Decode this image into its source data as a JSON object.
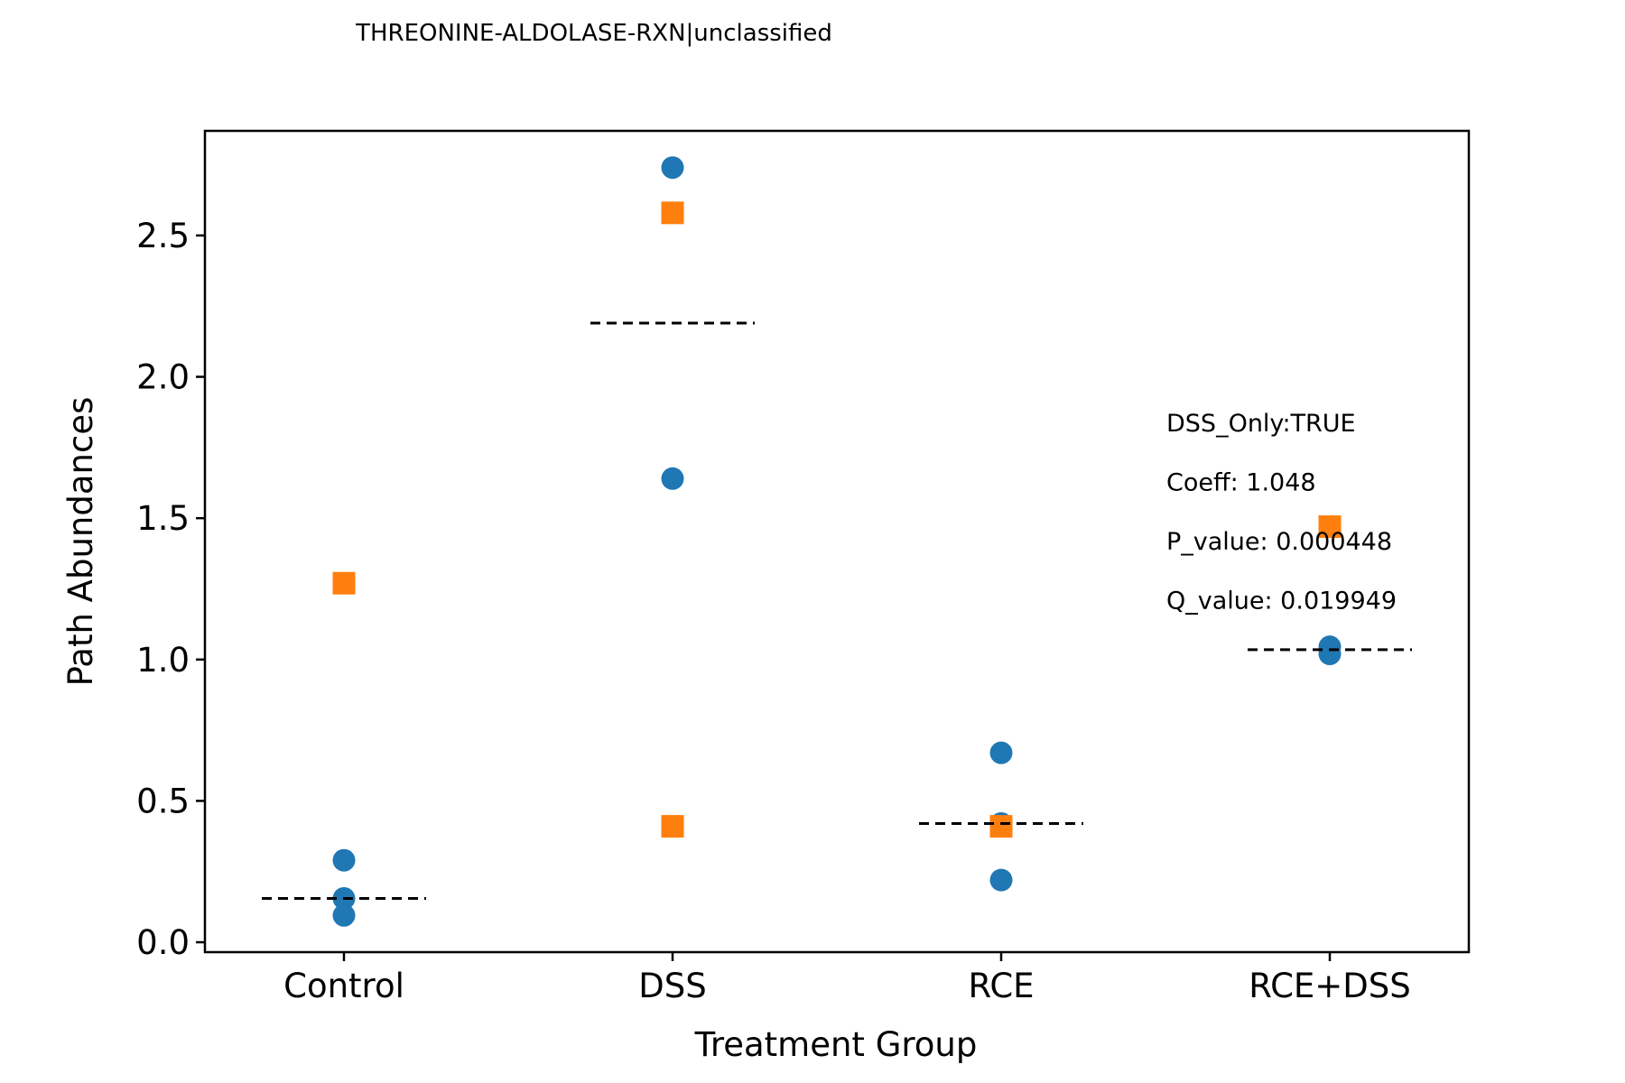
{
  "chart_data": {
    "type": "scatter",
    "title": "THREONINE-ALDOLASE-RXN|unclassified",
    "xlabel": "Treatment Group",
    "ylabel": "Path Abundances",
    "categories": [
      "Control",
      "DSS",
      "RCE",
      "RCE+DSS"
    ],
    "ylim": [
      -0.035,
      2.87
    ],
    "yticks": [
      0.0,
      0.5,
      1.0,
      1.5,
      2.0,
      2.5
    ],
    "ytick_labels": [
      "0.0",
      "0.5",
      "1.0",
      "1.5",
      "2.0",
      "2.5"
    ],
    "grid": false,
    "series": [
      {
        "marker": "circle",
        "color": "#1f77b4",
        "points": [
          {
            "category": "Control",
            "y": 0.29
          },
          {
            "category": "Control",
            "y": 0.155
          },
          {
            "category": "Control",
            "y": 0.095
          },
          {
            "category": "DSS",
            "y": 2.74
          },
          {
            "category": "DSS",
            "y": 1.64
          },
          {
            "category": "RCE",
            "y": 0.67
          },
          {
            "category": "RCE",
            "y": 0.42
          },
          {
            "category": "RCE",
            "y": 0.22
          },
          {
            "category": "RCE+DSS",
            "y": 1.045
          },
          {
            "category": "RCE+DSS",
            "y": 1.02
          }
        ]
      },
      {
        "marker": "square",
        "color": "#ff7f0e",
        "points": [
          {
            "category": "Control",
            "y": 1.27
          },
          {
            "category": "DSS",
            "y": 2.58
          },
          {
            "category": "DSS",
            "y": 0.41
          },
          {
            "category": "RCE",
            "y": 0.41
          },
          {
            "category": "RCE+DSS",
            "y": 1.47
          }
        ]
      }
    ],
    "group_means": [
      {
        "category": "Control",
        "y": 0.155
      },
      {
        "category": "DSS",
        "y": 2.19
      },
      {
        "category": "RCE",
        "y": 0.42
      },
      {
        "category": "RCE+DSS",
        "y": 1.035
      }
    ],
    "mean_line_style": "dashed",
    "mean_line_color": "#000000",
    "annotations": [
      "DSS_Only:TRUE",
      "Coeff: 1.048",
      "P_value: 0.000448",
      "Q_value: 0.019949"
    ]
  }
}
